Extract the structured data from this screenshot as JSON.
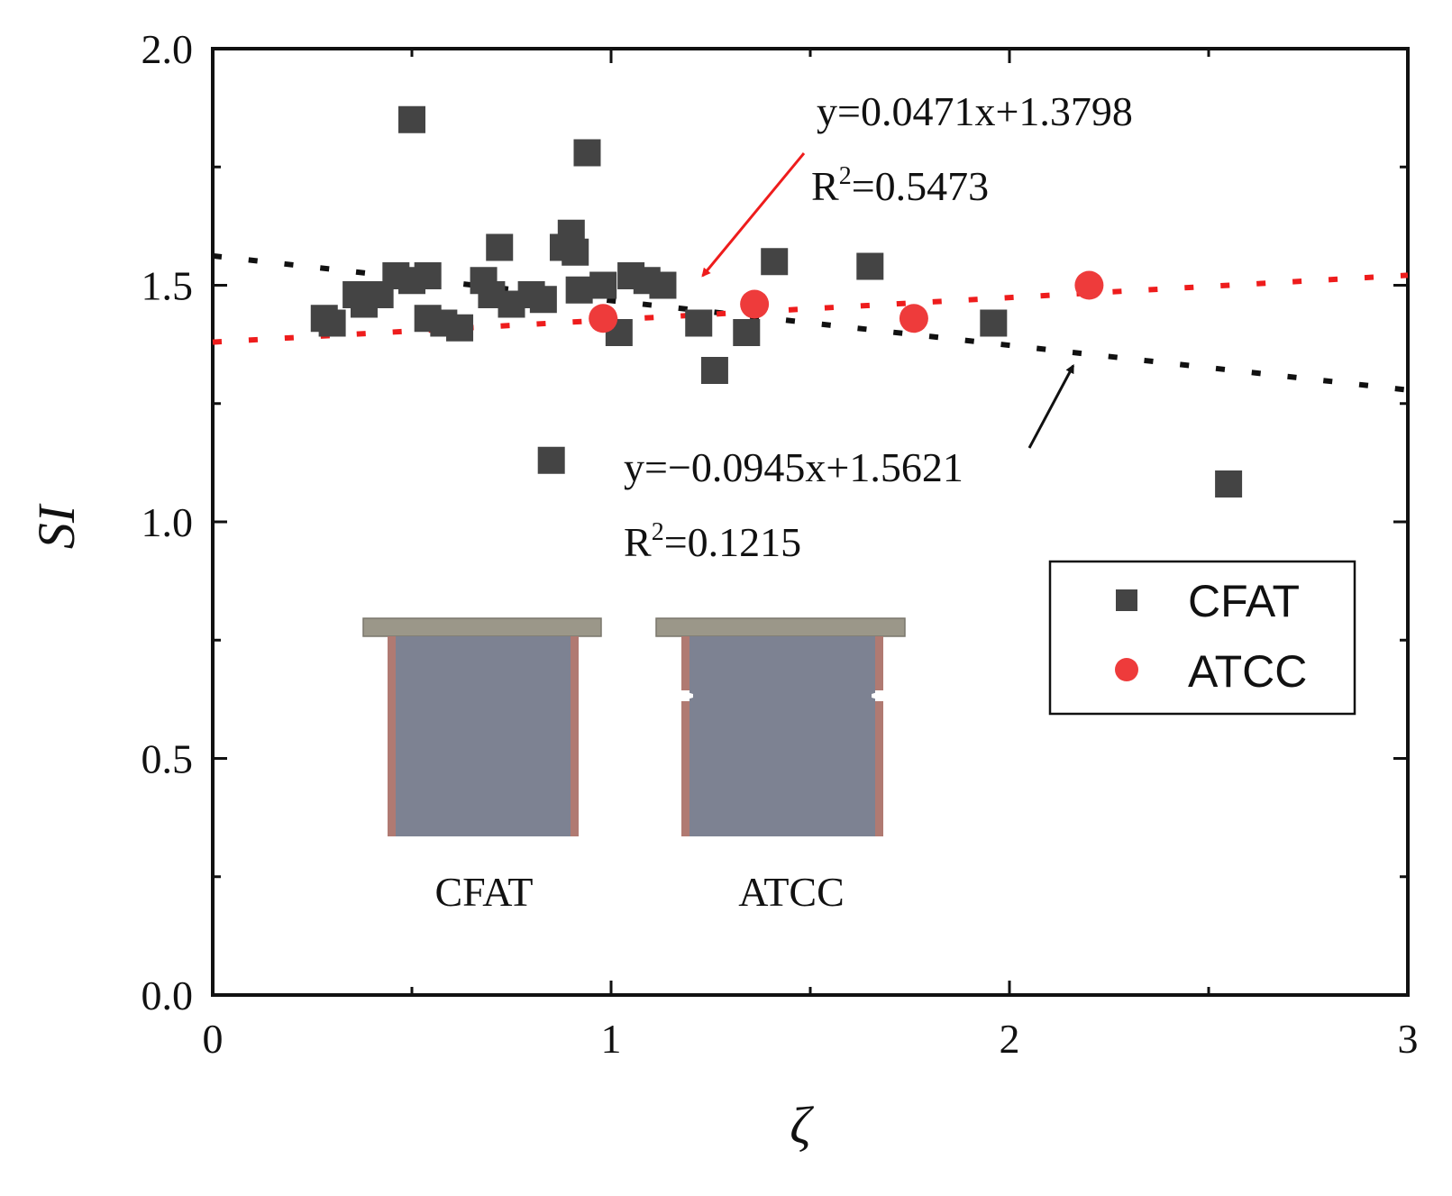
{
  "chart_data": {
    "type": "scatter",
    "title": "",
    "xlabel": "ζ",
    "ylabel": "SI",
    "xlim": [
      0,
      3
    ],
    "ylim": [
      0,
      2
    ],
    "x_ticks": [
      0,
      1,
      2,
      3
    ],
    "x_tick_labels": [
      "0",
      "1",
      "2",
      "3"
    ],
    "y_ticks": [
      0.0,
      0.5,
      1.0,
      1.5,
      2.0
    ],
    "y_tick_labels": [
      "0.0",
      "0.5",
      "1.0",
      "1.5",
      "2.0"
    ],
    "grid": false,
    "legend": {
      "position": "right-middle",
      "entries": [
        {
          "label": "CFAT",
          "marker": "square",
          "color": "#444444"
        },
        {
          "label": "ATCC",
          "marker": "circle",
          "color": "#ee3b3b"
        }
      ]
    },
    "series": [
      {
        "name": "CFAT",
        "color": "#444444",
        "marker": "square",
        "points": [
          [
            0.28,
            1.43
          ],
          [
            0.3,
            1.42
          ],
          [
            0.36,
            1.48
          ],
          [
            0.38,
            1.46
          ],
          [
            0.42,
            1.48
          ],
          [
            0.46,
            1.52
          ],
          [
            0.5,
            1.51
          ],
          [
            0.5,
            1.85
          ],
          [
            0.54,
            1.52
          ],
          [
            0.54,
            1.43
          ],
          [
            0.58,
            1.42
          ],
          [
            0.62,
            1.41
          ],
          [
            0.68,
            1.51
          ],
          [
            0.7,
            1.48
          ],
          [
            0.72,
            1.58
          ],
          [
            0.75,
            1.46
          ],
          [
            0.8,
            1.48
          ],
          [
            0.83,
            1.47
          ],
          [
            0.85,
            1.13
          ],
          [
            0.88,
            1.58
          ],
          [
            0.9,
            1.61
          ],
          [
            0.91,
            1.57
          ],
          [
            0.92,
            1.49
          ],
          [
            0.94,
            1.78
          ],
          [
            0.98,
            1.5
          ],
          [
            1.02,
            1.4
          ],
          [
            1.05,
            1.52
          ],
          [
            1.09,
            1.51
          ],
          [
            1.13,
            1.5
          ],
          [
            1.22,
            1.42
          ],
          [
            1.26,
            1.32
          ],
          [
            1.34,
            1.4
          ],
          [
            1.41,
            1.55
          ],
          [
            1.65,
            1.54
          ],
          [
            1.96,
            1.42
          ],
          [
            2.55,
            1.08
          ]
        ]
      },
      {
        "name": "ATCC",
        "color": "#ee3b3b",
        "marker": "circle",
        "points": [
          [
            0.98,
            1.43
          ],
          [
            1.36,
            1.46
          ],
          [
            1.76,
            1.43
          ],
          [
            2.2,
            1.5
          ]
        ]
      }
    ],
    "fits": [
      {
        "series": "CFAT",
        "slope": -0.0945,
        "intercept": 1.5621,
        "color": "#111111",
        "style": "dotted",
        "equation": "y=−0.0945x+1.5621",
        "r2_prefix": "R",
        "r2_sup": "2",
        "r2_value": "=0.1215",
        "arrow_to": [
          2.16,
          1.33
        ]
      },
      {
        "series": "ATCC",
        "slope": 0.0471,
        "intercept": 1.3798,
        "color": "#ee1c1c",
        "style": "dotted",
        "equation": "y=0.0471x+1.3798",
        "r2_prefix": "R",
        "r2_sup": "2",
        "r2_value": "=0.5473",
        "arrow_to": [
          1.23,
          1.52
        ]
      }
    ],
    "inset": {
      "labels": [
        "CFAT",
        "ATCC"
      ],
      "colors": {
        "core": "#7d8292",
        "cap": "#9b9789",
        "tube": "#b07a72"
      }
    }
  }
}
